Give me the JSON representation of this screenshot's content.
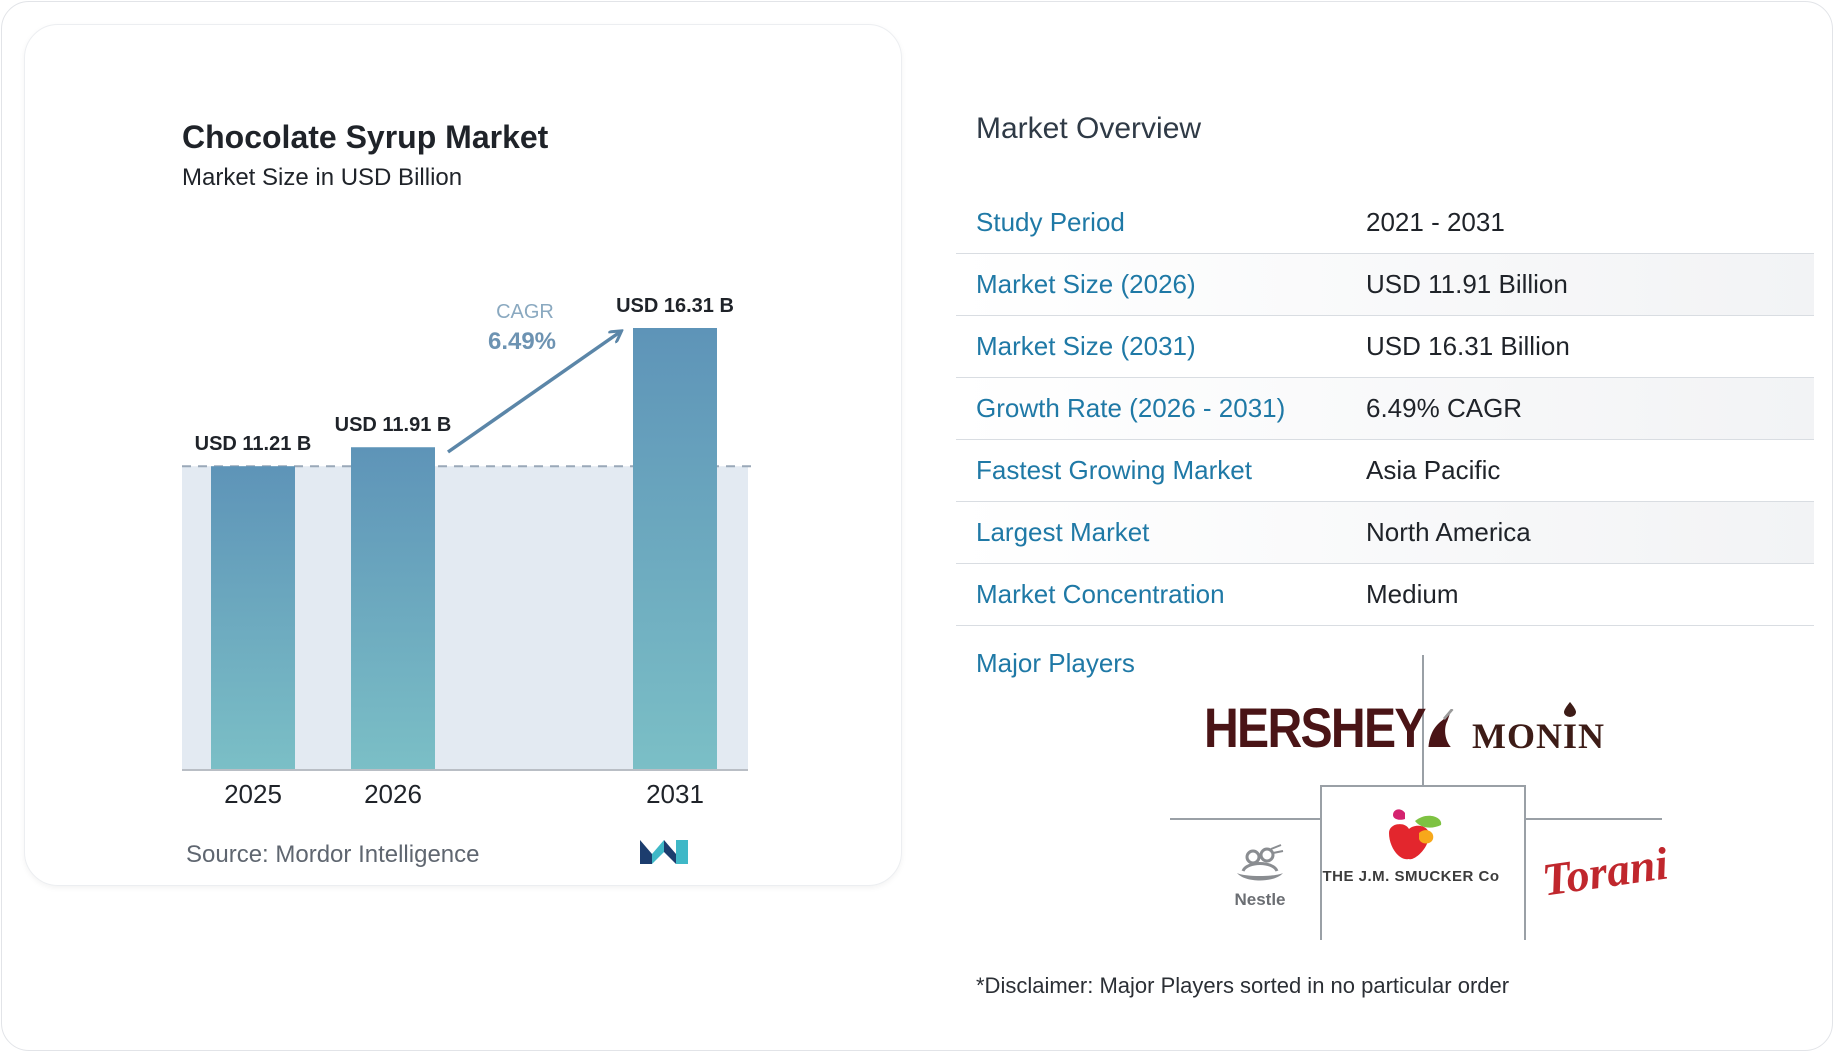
{
  "chart_data": {
    "type": "bar",
    "title": "Chocolate Syrup Market",
    "subtitle": "Market Size in USD Billion",
    "categories": [
      "2025",
      "2026",
      "2031"
    ],
    "values": [
      11.21,
      11.91,
      16.31
    ],
    "value_labels": [
      "USD 11.21 B",
      "USD 11.91 B",
      "USD 16.31 B"
    ],
    "cagr_label": "CAGR",
    "cagr_value": "6.49%",
    "source": "Source: Mordor Intelligence",
    "colors": {
      "bar_top": "#5e94b8",
      "bar_bottom": "#7bbfc6",
      "shade": "#e3eaf2",
      "arrow": "#5b86a8",
      "cagr_label": "#8aa9c0",
      "cagr_value": "#6d93b2"
    }
  },
  "overview": {
    "title": "Market Overview",
    "rows": [
      {
        "label": "Study Period",
        "value": "2021 - 2031"
      },
      {
        "label": "Market Size (2026)",
        "value": "USD 11.91 Billion"
      },
      {
        "label": "Market Size (2031)",
        "value": "USD 16.31 Billion"
      },
      {
        "label": "Growth Rate (2026 - 2031)",
        "value": "6.49% CAGR"
      },
      {
        "label": "Fastest Growing Market",
        "value": "Asia Pacific"
      },
      {
        "label": "Largest Market",
        "value": "North America"
      },
      {
        "label": "Market Concentration",
        "value": "Medium"
      }
    ]
  },
  "players": {
    "title": "Major Players",
    "logos": {
      "hershey": "HERSHEY",
      "monin": "MONIN",
      "nestle": "Nestle",
      "smucker": "THE J.M. SMUCKER Co",
      "torani": "Torani"
    }
  },
  "disclaimer": "*Disclaimer: Major Players sorted in no particular order"
}
